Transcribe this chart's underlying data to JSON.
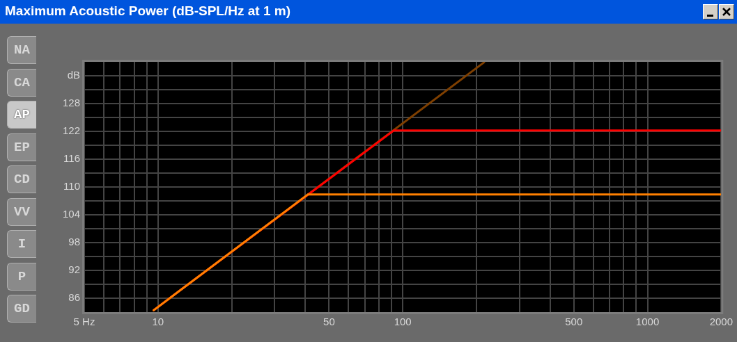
{
  "chart_data": {
    "type": "line",
    "title": "Maximum Acoustic Power (dB-SPL/Hz at 1 m)",
    "annotations": [
      "NA",
      "CA",
      "AP",
      "EP",
      "CD",
      "VV",
      "I",
      "P",
      "GD"
    ],
    "log": "x",
    "grid": true,
    "legend": false,
    "xlim": [
      5,
      2000
    ],
    "xticks": [
      {
        "value": 5,
        "label": "5 Hz"
      },
      {
        "value": 6,
        "label": null
      },
      {
        "value": 7,
        "label": null
      },
      {
        "value": 8,
        "label": null
      },
      {
        "value": 9,
        "label": null
      },
      10,
      {
        "value": 20,
        "label": null
      },
      {
        "value": 30,
        "label": null
      },
      {
        "value": 40,
        "label": null
      },
      50,
      {
        "value": 60,
        "label": null
      },
      {
        "value": 70,
        "label": null
      },
      {
        "value": 80,
        "label": null
      },
      {
        "value": 90,
        "label": null
      },
      100,
      {
        "value": 200,
        "label": null
      },
      {
        "value": 300,
        "label": null
      },
      {
        "value": 400,
        "label": null
      },
      500,
      {
        "value": 600,
        "label": null
      },
      {
        "value": 700,
        "label": null
      },
      {
        "value": 800,
        "label": null
      },
      {
        "value": 900,
        "label": null
      },
      1000,
      2000
    ],
    "ylim": [
      83,
      137
    ],
    "yticks": [
      86,
      {
        "value": 89,
        "label": null
      },
      92,
      {
        "value": 95,
        "label": null
      },
      98,
      {
        "value": 101,
        "label": null
      },
      104,
      {
        "value": 107,
        "label": null
      },
      110,
      {
        "value": 113,
        "label": null
      },
      116,
      {
        "value": 119,
        "label": null
      },
      122,
      {
        "value": 125,
        "label": null
      },
      128,
      {
        "value": 131,
        "label": null
      },
      {
        "value": 134,
        "label": "dB"
      }
    ],
    "series": [
      {
        "color": "#7f3f00",
        "x": [
          9.6,
          215
        ],
        "values": [
          83.4,
          136.9
        ]
      },
      {
        "color": "#ff0000",
        "x": [
          9.6,
          92,
          2000
        ],
        "values": [
          83.4,
          122.2,
          122.2
        ]
      },
      {
        "color": "#ff8000",
        "x": [
          9.6,
          41,
          2000
        ],
        "values": [
          83.4,
          108.4,
          108.4
        ]
      }
    ]
  }
}
